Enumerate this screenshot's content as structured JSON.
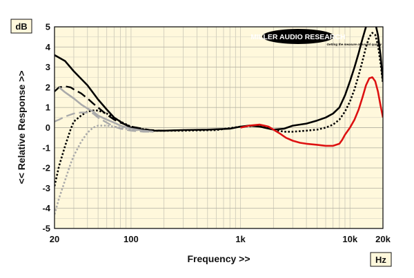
{
  "chart_data": {
    "type": "line",
    "xlabel": "Frequency >>",
    "ylabel": "<< Relative Response >>",
    "y_unit": "dB",
    "x_unit": "Hz",
    "x_scale": "log",
    "xlim": [
      20,
      20000
    ],
    "ylim": [
      -5,
      5
    ],
    "grid": true,
    "background": "#fff8dc",
    "x_ticks": [
      {
        "value": 20,
        "label": "20"
      },
      {
        "value": 100,
        "label": "100"
      },
      {
        "value": 1000,
        "label": "1k"
      },
      {
        "value": 10000,
        "label": "10k"
      },
      {
        "value": 20000,
        "label": "20k"
      }
    ],
    "y_ticks": [
      5,
      4,
      3,
      2,
      1,
      0,
      -1,
      -2,
      -3,
      -4,
      -5
    ],
    "logo": {
      "brand": "MILLER AUDIO RESEARCH",
      "tagline": "Getting the measure of sound quality"
    },
    "series": [
      {
        "color": "#000000",
        "dash": "none",
        "width": 2.6,
        "points": [
          [
            20,
            3.6
          ],
          [
            25,
            3.3
          ],
          [
            30,
            2.8
          ],
          [
            40,
            2.1
          ],
          [
            50,
            1.4
          ],
          [
            60,
            0.9
          ],
          [
            70,
            0.5
          ],
          [
            85,
            0.2
          ],
          [
            100,
            0.0
          ],
          [
            150,
            -0.15
          ],
          [
            200,
            -0.15
          ],
          [
            300,
            -0.12
          ],
          [
            500,
            -0.1
          ],
          [
            800,
            -0.05
          ],
          [
            1000,
            0.05
          ],
          [
            1200,
            0.1
          ],
          [
            1500,
            0.05
          ],
          [
            2000,
            -0.1
          ],
          [
            2500,
            -0.05
          ],
          [
            3000,
            0.1
          ],
          [
            4000,
            0.2
          ],
          [
            5000,
            0.35
          ],
          [
            6000,
            0.5
          ],
          [
            7000,
            0.7
          ],
          [
            8000,
            1.0
          ],
          [
            9000,
            1.6
          ],
          [
            10000,
            2.3
          ],
          [
            11000,
            3.0
          ],
          [
            12000,
            3.7
          ],
          [
            13000,
            4.4
          ],
          [
            14000,
            5.0
          ],
          [
            15000,
            5.3
          ],
          [
            16000,
            5.4
          ],
          [
            17000,
            5.2
          ],
          [
            18000,
            4.6
          ],
          [
            19000,
            3.6
          ],
          [
            20000,
            2.3
          ]
        ]
      },
      {
        "color": "#000000",
        "dash": "long",
        "width": 2.4,
        "points": [
          [
            20,
            1.8
          ],
          [
            22,
            2.0
          ],
          [
            25,
            2.05
          ],
          [
            28,
            2.0
          ],
          [
            30,
            1.9
          ],
          [
            35,
            1.7
          ],
          [
            40,
            1.45
          ],
          [
            45,
            1.2
          ],
          [
            50,
            1.0
          ],
          [
            60,
            0.65
          ],
          [
            70,
            0.4
          ],
          [
            80,
            0.25
          ],
          [
            100,
            0.05
          ],
          [
            150,
            -0.12
          ],
          [
            200,
            -0.15
          ]
        ]
      },
      {
        "color": "#000000",
        "dash": "dot",
        "width": 2.6,
        "points": [
          [
            20,
            -2.9
          ],
          [
            22,
            -1.9
          ],
          [
            25,
            -0.9
          ],
          [
            28,
            -0.1
          ],
          [
            30,
            0.3
          ],
          [
            35,
            0.6
          ],
          [
            40,
            0.8
          ],
          [
            45,
            0.85
          ],
          [
            50,
            0.85
          ],
          [
            60,
            0.7
          ],
          [
            70,
            0.5
          ],
          [
            80,
            0.3
          ],
          [
            100,
            0.05
          ],
          [
            150,
            -0.15
          ],
          [
            300,
            -0.15
          ],
          [
            600,
            -0.12
          ],
          [
            1000,
            0.05
          ],
          [
            1500,
            0.1
          ],
          [
            2000,
            -0.1
          ],
          [
            2500,
            -0.2
          ],
          [
            3000,
            -0.2
          ],
          [
            4000,
            -0.15
          ],
          [
            5000,
            -0.1
          ],
          [
            6000,
            0.0
          ],
          [
            7000,
            0.15
          ],
          [
            8000,
            0.4
          ],
          [
            9000,
            0.8
          ],
          [
            10000,
            1.3
          ],
          [
            11000,
            1.9
          ],
          [
            12000,
            2.6
          ],
          [
            13000,
            3.3
          ],
          [
            14000,
            4.0
          ],
          [
            15000,
            4.5
          ],
          [
            16000,
            4.7
          ],
          [
            17000,
            4.6
          ],
          [
            18000,
            4.1
          ],
          [
            19000,
            3.2
          ],
          [
            20000,
            2.2
          ]
        ]
      },
      {
        "color": "#aaaaaa",
        "dash": "none",
        "width": 2.6,
        "points": [
          [
            22,
            2.0
          ],
          [
            25,
            1.75
          ],
          [
            30,
            1.45
          ],
          [
            35,
            1.15
          ],
          [
            40,
            0.95
          ],
          [
            45,
            0.8
          ],
          [
            50,
            0.6
          ],
          [
            60,
            0.4
          ],
          [
            70,
            0.25
          ],
          [
            80,
            0.1
          ],
          [
            100,
            -0.05
          ],
          [
            130,
            -0.15
          ],
          [
            160,
            -0.2
          ]
        ]
      },
      {
        "color": "#aaaaaa",
        "dash": "long",
        "width": 2.4,
        "points": [
          [
            20,
            0.3
          ],
          [
            22,
            0.4
          ],
          [
            25,
            0.55
          ],
          [
            30,
            0.7
          ],
          [
            35,
            0.75
          ],
          [
            40,
            0.75
          ],
          [
            45,
            0.7
          ],
          [
            50,
            0.5
          ],
          [
            60,
            0.25
          ],
          [
            70,
            0.05
          ],
          [
            80,
            -0.05
          ],
          [
            100,
            -0.15
          ],
          [
            130,
            -0.2
          ],
          [
            160,
            -0.2
          ]
        ]
      },
      {
        "color": "#aaaaaa",
        "dash": "dot",
        "width": 2.6,
        "points": [
          [
            20,
            -4.3
          ],
          [
            22,
            -3.5
          ],
          [
            25,
            -2.6
          ],
          [
            28,
            -1.8
          ],
          [
            30,
            -1.4
          ],
          [
            35,
            -0.7
          ],
          [
            40,
            -0.25
          ],
          [
            45,
            0.0
          ],
          [
            50,
            0.1
          ],
          [
            60,
            0.1
          ],
          [
            70,
            0.05
          ],
          [
            80,
            0.0
          ],
          [
            100,
            -0.1
          ],
          [
            130,
            -0.15
          ],
          [
            160,
            -0.2
          ]
        ]
      },
      {
        "color": "#dd1111",
        "dash": "none",
        "width": 2.6,
        "points": [
          [
            1000,
            0.0
          ],
          [
            1200,
            0.1
          ],
          [
            1500,
            0.15
          ],
          [
            1800,
            0.05
          ],
          [
            2000,
            -0.1
          ],
          [
            2300,
            -0.3
          ],
          [
            2600,
            -0.5
          ],
          [
            3000,
            -0.65
          ],
          [
            3500,
            -0.75
          ],
          [
            4000,
            -0.8
          ],
          [
            5000,
            -0.85
          ],
          [
            6000,
            -0.9
          ],
          [
            7000,
            -0.9
          ],
          [
            8000,
            -0.8
          ],
          [
            8500,
            -0.6
          ],
          [
            9000,
            -0.35
          ],
          [
            10000,
            0.0
          ],
          [
            11000,
            0.4
          ],
          [
            12000,
            0.9
          ],
          [
            13000,
            1.5
          ],
          [
            14000,
            2.1
          ],
          [
            15000,
            2.45
          ],
          [
            16000,
            2.5
          ],
          [
            17000,
            2.3
          ],
          [
            18000,
            1.8
          ],
          [
            19000,
            1.1
          ],
          [
            20000,
            0.5
          ]
        ]
      }
    ]
  }
}
